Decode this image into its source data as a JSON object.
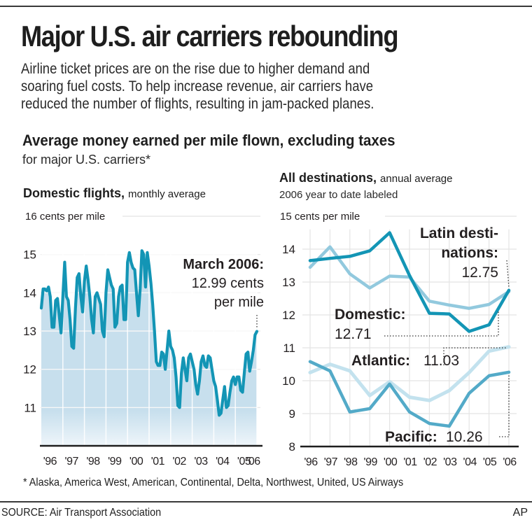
{
  "header": {
    "title": "Major U.S. air carriers rebounding",
    "intro_lines": [
      "Airline ticket prices are on the rise due to higher demand and",
      "soaring fuel costs. To help increase revenue, air carriers have",
      "reduced the number of flights, resulting in jam-packed planes."
    ],
    "subtitle": "Average money earned per mile flown, excluding taxes",
    "subnote": "for major U.S. carriers*"
  },
  "colors": {
    "domestic_monthly_line": "#1395b5",
    "domestic_monthly_fill": "#c7dfed",
    "latin": "#1395b5",
    "domestic": "#92c9de",
    "atlantic": "#c3e2ee",
    "pacific": "#53aac8",
    "grid": "#e4e4e4",
    "text": "#231f20"
  },
  "chart_data": [
    {
      "type": "area",
      "title": "Domestic flights,",
      "title_suffix": "monthly average",
      "ylabel": "cents per mile",
      "ytick_labels": [
        "16 cents per mile",
        "15",
        "14",
        "13",
        "12",
        "11",
        "10"
      ],
      "yticks": [
        16,
        15,
        14,
        13,
        12,
        11,
        10
      ],
      "ylim": [
        10,
        16
      ],
      "xtick_labels": [
        "'96",
        "'97",
        "'98",
        "'99",
        "'00",
        "'01",
        "'02",
        "'03",
        "'04",
        "'05",
        "'06"
      ],
      "x_start": "Jan 1996",
      "x_end": "Mar 2006",
      "grid": true,
      "annotation": {
        "title": "March 2006:",
        "lines": [
          "12.99 cents",
          "per mile"
        ],
        "value": 12.99
      },
      "series": [
        {
          "name": "Domestic monthly average",
          "values": [
            13.6,
            14.1,
            14.1,
            14.05,
            14.15,
            13.9,
            13.1,
            13.1,
            13.8,
            13.85,
            13.4,
            12.95,
            13.9,
            14.8,
            13.9,
            13.8,
            13.3,
            12.6,
            12.55,
            13.6,
            14.4,
            14.5,
            13.9,
            13.5,
            14.3,
            14.7,
            14.35,
            13.9,
            13.3,
            12.95,
            13.9,
            14.0,
            13.85,
            13.7,
            13.0,
            12.85,
            14.0,
            14.6,
            14.4,
            14.2,
            14.1,
            13.1,
            13.2,
            13.9,
            14.15,
            14.2,
            13.3,
            13.3,
            14.8,
            15.05,
            14.8,
            14.65,
            14.6,
            14.0,
            13.4,
            14.1,
            15.1,
            15.0,
            14.15,
            15.05,
            14.7,
            14.25,
            13.7,
            13.0,
            12.2,
            12.1,
            12.1,
            12.45,
            12.4,
            12.0,
            12.5,
            13.0,
            12.6,
            12.5,
            12.3,
            11.8,
            11.05,
            11.0,
            11.9,
            12.3,
            12.0,
            11.7,
            12.3,
            12.4,
            12.2,
            12.0,
            11.6,
            11.35,
            11.7,
            12.2,
            12.35,
            12.1,
            12.05,
            12.35,
            12.3,
            12.0,
            11.7,
            11.55,
            11.2,
            10.8,
            10.85,
            11.2,
            11.55,
            11.0,
            11.05,
            11.4,
            11.7,
            11.8,
            11.6,
            11.8,
            11.8,
            11.45,
            11.4,
            11.9,
            12.4,
            12.45,
            11.95,
            12.2,
            12.5,
            12.9,
            12.99
          ]
        }
      ]
    },
    {
      "type": "line",
      "title": "All destinations,",
      "title_suffix": "annual average",
      "subtitle": "2006 year to date labeled",
      "ylabel": "cents per mile",
      "ytick_labels": [
        "15 cents per mile",
        "14",
        "13",
        "12",
        "11",
        "10",
        "9",
        "8"
      ],
      "yticks": [
        15,
        14,
        13,
        12,
        11,
        10,
        9,
        8
      ],
      "ylim": [
        8,
        15
      ],
      "categories": [
        "'96",
        "'97",
        "'98",
        "'99",
        "'00",
        "'01",
        "'02",
        "'03",
        "'04",
        "'05",
        "'06"
      ],
      "grid": true,
      "series": [
        {
          "name": "Latin destinations",
          "label_lines": [
            "Latin desti-",
            "nations:"
          ],
          "label_value": "12.75",
          "values": [
            13.65,
            13.72,
            13.78,
            13.95,
            14.5,
            13.2,
            12.05,
            12.03,
            11.5,
            11.7,
            12.75
          ]
        },
        {
          "name": "Domestic",
          "label_lines": [
            "Domestic:"
          ],
          "label_value": "12.71",
          "values": [
            13.45,
            14.07,
            13.25,
            12.82,
            13.18,
            13.15,
            12.42,
            12.3,
            12.2,
            12.32,
            12.71
          ]
        },
        {
          "name": "Atlantic",
          "label_lines": [
            "Atlantic:"
          ],
          "label_value": "11.03",
          "values": [
            10.25,
            10.5,
            10.3,
            9.55,
            9.97,
            9.5,
            9.4,
            9.7,
            10.25,
            10.9,
            11.03
          ]
        },
        {
          "name": "Pacific",
          "label_lines": [
            "Pacific:"
          ],
          "label_value": "10.26",
          "values": [
            10.58,
            10.3,
            9.05,
            9.15,
            9.9,
            9.05,
            8.7,
            8.62,
            9.62,
            10.15,
            10.26
          ]
        }
      ]
    }
  ],
  "footer": {
    "footnote": "* Alaska, America West, American, Continental, Delta, Northwest, United, US Airways",
    "source": "SOURCE: Air Transport Association",
    "credit": "AP"
  }
}
